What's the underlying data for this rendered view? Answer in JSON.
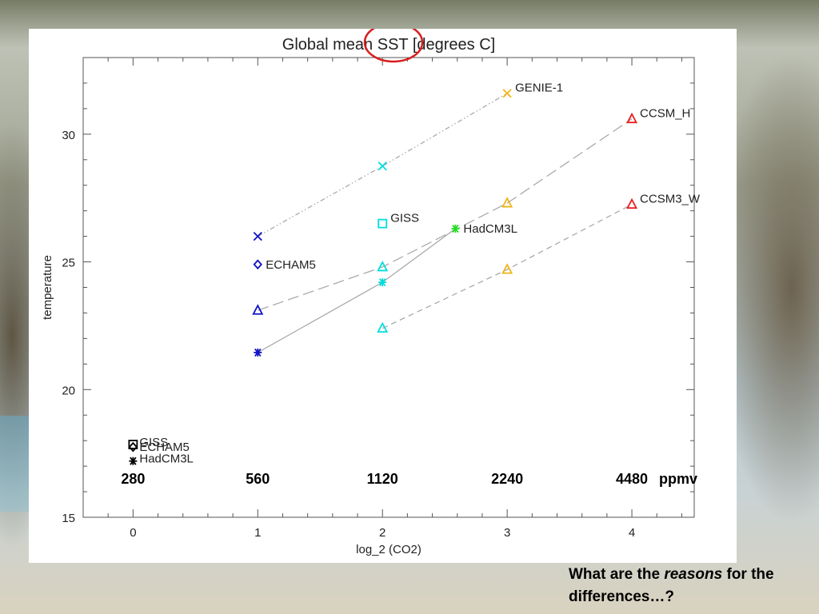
{
  "chart_data": {
    "type": "scatter",
    "title": "Global mean SST [degrees C]",
    "xlabel": "log_2 (CO2)",
    "ylabel": "temperature",
    "xlim": [
      -0.4,
      4.5
    ],
    "ylim": [
      15,
      33
    ],
    "xticks": [
      0,
      1,
      2,
      3,
      4
    ],
    "yticks": [
      15,
      20,
      25,
      30
    ],
    "grid": false,
    "ppmv_labels": [
      "280",
      "560",
      "1120",
      "2240",
      "4480"
    ],
    "ppmv_unit": "ppmv",
    "highlight_circle_text": "SST",
    "series": [
      {
        "name": "GENIE-1",
        "marker": "x",
        "color": "#1010c8",
        "line_style": "dash-dot-dot",
        "points": [
          {
            "x": 1,
            "y": 26.0,
            "color": "#1010c8"
          },
          {
            "x": 2,
            "y": 28.75,
            "color": "#00dede"
          },
          {
            "x": 3,
            "y": 31.6,
            "color": "#f0b419"
          }
        ]
      },
      {
        "name": "CCSM_H",
        "marker": "triangle",
        "color": "#1010c8",
        "line_style": "long-dash",
        "points": [
          {
            "x": 1,
            "y": 23.1,
            "color": "#1010c8"
          },
          {
            "x": 2,
            "y": 24.8,
            "color": "#00dede"
          },
          {
            "x": 3,
            "y": 27.3,
            "color": "#f0b419"
          },
          {
            "x": 4,
            "y": 30.6,
            "color": "#e82020"
          }
        ]
      },
      {
        "name": "CCSM3_W",
        "marker": "triangle",
        "color": "#00dede",
        "line_style": "short-dash",
        "points": [
          {
            "x": 2,
            "y": 22.4,
            "color": "#00dede"
          },
          {
            "x": 3,
            "y": 24.7,
            "color": "#f0b419"
          },
          {
            "x": 4,
            "y": 27.25,
            "color": "#e82020"
          }
        ]
      },
      {
        "name": "HadCM3L",
        "marker": "asterisk",
        "color": "#1010c8",
        "line_style": "solid",
        "points": [
          {
            "x": 0,
            "y": 17.2,
            "color": "#000000"
          },
          {
            "x": 1,
            "y": 21.45,
            "color": "#1010c8"
          },
          {
            "x": 2,
            "y": 24.2,
            "color": "#00dede"
          },
          {
            "x": 2.585,
            "y": 26.3,
            "color": "#22dd22"
          }
        ]
      },
      {
        "name": "ECHAM5",
        "marker": "diamond",
        "color": "#1010c8",
        "line_style": "none",
        "points": [
          {
            "x": 0,
            "y": 17.75,
            "color": "#000000"
          },
          {
            "x": 1,
            "y": 24.9,
            "color": "#1010c8"
          }
        ]
      },
      {
        "name": "GISS",
        "marker": "square",
        "color": "#00dede",
        "line_style": "none",
        "points": [
          {
            "x": 0,
            "y": 17.85,
            "color": "#000000"
          },
          {
            "x": 2,
            "y": 26.5,
            "color": "#00dede"
          }
        ]
      }
    ],
    "annotations": [
      {
        "text": "GENIE-1",
        "x": 3,
        "y": 31.6
      },
      {
        "text": "CCSM_H",
        "x": 4,
        "y": 30.6
      },
      {
        "text": "CCSM3_W",
        "x": 4,
        "y": 27.25
      },
      {
        "text": "HadCM3L",
        "x": 2.585,
        "y": 26.3
      },
      {
        "text": "GISS",
        "x": 2,
        "y": 26.5
      },
      {
        "text": "ECHAM5",
        "x": 1,
        "y": 24.9
      },
      {
        "text": "GISS",
        "x": 0,
        "y": 17.85
      },
      {
        "text": "ECHAM5",
        "x": 0,
        "y": 17.75
      },
      {
        "text": "HadCM3L",
        "x": 0,
        "y": 17.2
      }
    ]
  },
  "question": {
    "prefix": "What are the ",
    "emphasis": "reasons",
    "suffix": " for the differences…?"
  },
  "colors": {
    "axis": "#555555",
    "connector": "#aaaaaa",
    "highlight_circle": "#d81e1e"
  }
}
